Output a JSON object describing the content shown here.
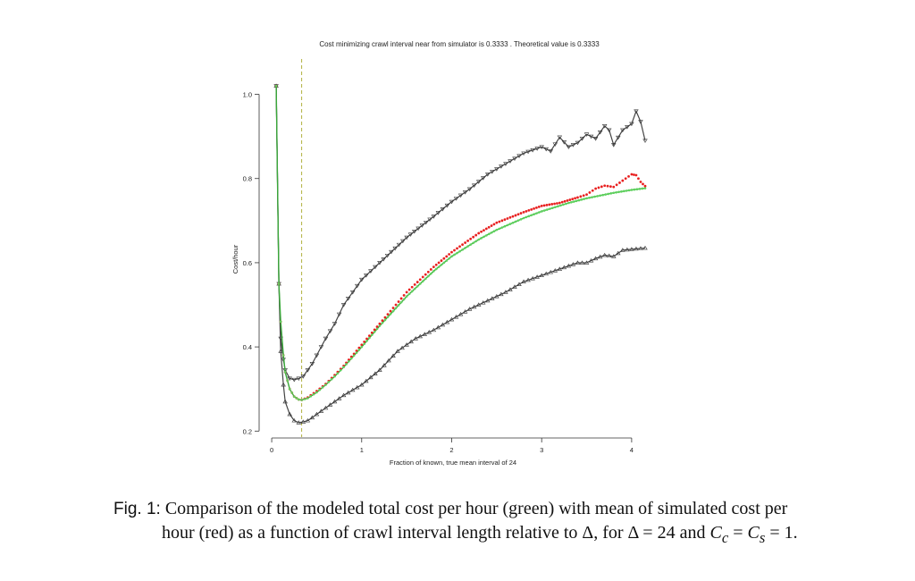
{
  "chart_data": {
    "type": "line",
    "title": "Cost minimizing crawl interval near from simulator is 0.3333 . Theoretical value is 0.3333",
    "xlabel": "Fraction of known, true mean interval of 24",
    "ylabel": "Cost/hour",
    "xlim": [
      -0.1,
      4.15
    ],
    "ylim": [
      0.19,
      1.05
    ],
    "xticks": [
      0,
      1,
      2,
      3,
      4
    ],
    "yticks": [
      0.2,
      0.4,
      0.6,
      0.8,
      1.0
    ],
    "ytick_labels": [
      "0.2",
      "0.4",
      "0.6",
      "0.8",
      "1.0"
    ],
    "grid": false,
    "vline_x": 0.3333,
    "series": [
      {
        "name": "modeled total cost per hour",
        "color": "#5fd35f",
        "x": [
          0.05,
          0.08,
          0.1,
          0.13,
          0.15,
          0.2,
          0.25,
          0.3,
          0.3333,
          0.4,
          0.5,
          0.6,
          0.7,
          0.8,
          1.0,
          1.2,
          1.5,
          1.8,
          2.0,
          2.3,
          2.5,
          2.8,
          3.0,
          3.3,
          3.5,
          3.8,
          4.0,
          4.15
        ],
        "y": [
          1.02,
          0.55,
          0.46,
          0.38,
          0.34,
          0.3,
          0.282,
          0.275,
          0.274,
          0.278,
          0.292,
          0.31,
          0.33,
          0.352,
          0.4,
          0.45,
          0.52,
          0.58,
          0.615,
          0.655,
          0.678,
          0.706,
          0.722,
          0.742,
          0.753,
          0.766,
          0.773,
          0.777
        ]
      },
      {
        "name": "mean of simulated cost per hour",
        "color": "#e82020",
        "x": [
          0.05,
          0.08,
          0.1,
          0.13,
          0.15,
          0.2,
          0.25,
          0.3,
          0.3333,
          0.4,
          0.5,
          0.6,
          0.7,
          0.8,
          1.0,
          1.2,
          1.5,
          1.8,
          2.0,
          2.3,
          2.5,
          2.8,
          3.0,
          3.2,
          3.4,
          3.5,
          3.6,
          3.7,
          3.8,
          3.9,
          4.0,
          4.05,
          4.1,
          4.15
        ],
        "y": [
          1.02,
          0.55,
          0.46,
          0.38,
          0.34,
          0.3,
          0.282,
          0.275,
          0.274,
          0.28,
          0.295,
          0.312,
          0.333,
          0.355,
          0.405,
          0.455,
          0.53,
          0.59,
          0.625,
          0.67,
          0.695,
          0.72,
          0.735,
          0.742,
          0.755,
          0.762,
          0.776,
          0.783,
          0.78,
          0.795,
          0.81,
          0.808,
          0.792,
          0.782
        ]
      },
      {
        "name": "upper",
        "color": "#444444",
        "x": [
          0.05,
          0.08,
          0.1,
          0.13,
          0.15,
          0.2,
          0.25,
          0.3,
          0.35,
          0.4,
          0.45,
          0.5,
          0.6,
          0.7,
          0.8,
          1.0,
          1.2,
          1.5,
          1.8,
          2.0,
          2.2,
          2.4,
          2.6,
          2.8,
          3.0,
          3.1,
          3.2,
          3.3,
          3.4,
          3.5,
          3.6,
          3.7,
          3.75,
          3.8,
          3.9,
          4.0,
          4.05,
          4.1,
          4.15
        ],
        "y": [
          1.02,
          0.55,
          0.42,
          0.37,
          0.345,
          0.325,
          0.322,
          0.325,
          0.33,
          0.345,
          0.36,
          0.38,
          0.42,
          0.455,
          0.5,
          0.56,
          0.6,
          0.66,
          0.71,
          0.745,
          0.775,
          0.81,
          0.835,
          0.86,
          0.875,
          0.865,
          0.898,
          0.875,
          0.885,
          0.905,
          0.895,
          0.925,
          0.915,
          0.88,
          0.915,
          0.93,
          0.96,
          0.935,
          0.89
        ]
      },
      {
        "name": "lower",
        "color": "#444444",
        "x": [
          0.05,
          0.08,
          0.1,
          0.13,
          0.15,
          0.2,
          0.25,
          0.3,
          0.35,
          0.4,
          0.45,
          0.5,
          0.6,
          0.7,
          0.8,
          1.0,
          1.2,
          1.4,
          1.6,
          1.8,
          2.0,
          2.2,
          2.4,
          2.6,
          2.8,
          3.0,
          3.2,
          3.4,
          3.5,
          3.6,
          3.7,
          3.8,
          3.9,
          4.0,
          4.15
        ],
        "y": [
          1.02,
          0.55,
          0.39,
          0.31,
          0.27,
          0.24,
          0.225,
          0.22,
          0.222,
          0.225,
          0.232,
          0.24,
          0.255,
          0.27,
          0.285,
          0.31,
          0.345,
          0.39,
          0.42,
          0.44,
          0.465,
          0.49,
          0.51,
          0.53,
          0.555,
          0.57,
          0.585,
          0.6,
          0.6,
          0.61,
          0.618,
          0.615,
          0.63,
          0.632,
          0.635
        ]
      }
    ]
  },
  "caption": {
    "fig_label": "Fig. 1:",
    "text_1": " Comparison of the modeled total cost per hour (green) with mean of simulated cost per hour (red) as a function of crawl interval length relative to Δ, for Δ = 24 and ",
    "cc": "C",
    "cc_sub": "c",
    "eq1": " = ",
    "cs": "C",
    "cs_sub": "s",
    "eq2": " = 1."
  }
}
